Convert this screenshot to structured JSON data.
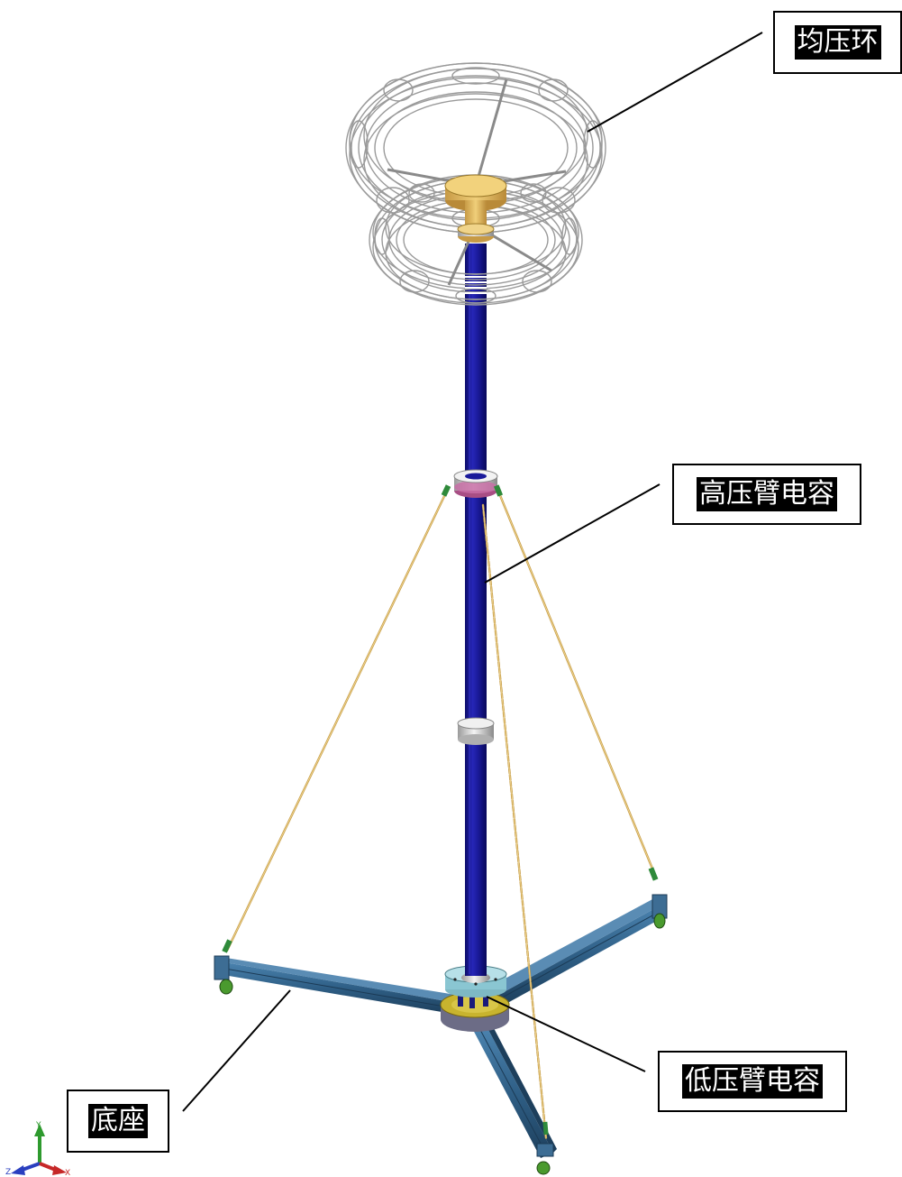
{
  "labels": {
    "grading_ring": "均压环",
    "high_voltage_arm_capacitor": "高压臂电容",
    "low_voltage_arm_capacitor": "低压臂电容",
    "base": "底座"
  },
  "axis_triad": {
    "axes": [
      "Y",
      "Z",
      "X"
    ],
    "colors": {
      "Y": "#2e9a2e",
      "Z": "#2a3fbf",
      "X": "#c62828"
    }
  },
  "colors": {
    "column": "#14148c",
    "grading_ring_wire": "#9a9a9a",
    "guy_wire": "#c8a04c",
    "base_beam": "#2f5f86",
    "base_plate": "#c8b42e",
    "flange_pink": "#c86ea6",
    "flange_silver": "#d6d6d6",
    "wheel": "#4a9a2e"
  }
}
